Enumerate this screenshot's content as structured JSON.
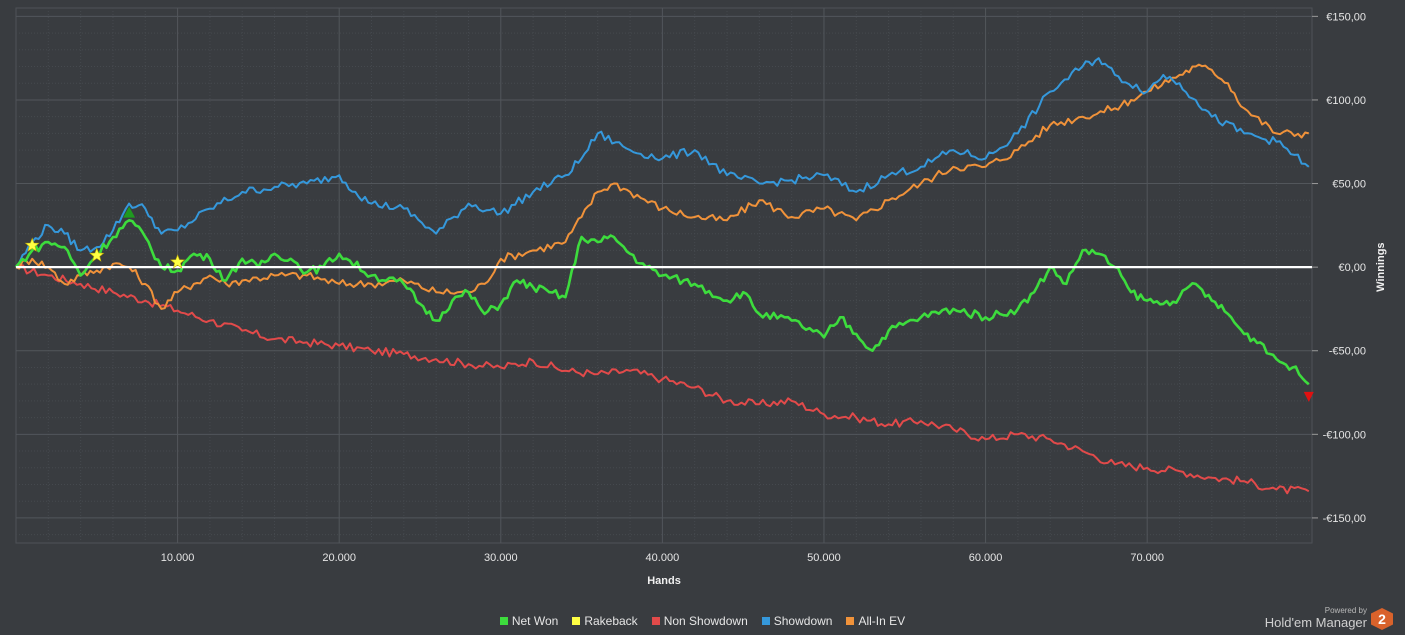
{
  "chart_data": {
    "type": "line",
    "xlabel": "Hands",
    "ylabel": "Winnings",
    "xlim": [
      0,
      80200
    ],
    "ylim": [
      -165,
      155
    ],
    "x_ticks": [
      10000,
      20000,
      30000,
      40000,
      50000,
      60000,
      70000
    ],
    "x_tick_labels": [
      "10.000",
      "20.000",
      "30.000",
      "40.000",
      "50.000",
      "60.000",
      "70.000"
    ],
    "y_ticks": [
      150,
      100,
      50,
      0,
      -50,
      -100,
      -150
    ],
    "y_tick_labels": [
      "€150,00",
      "€100,00",
      "€50,00",
      "€0,00",
      "-€50,00",
      "-€100,00",
      "-€150,00"
    ],
    "grid": true,
    "legend_position": "bottom-center",
    "colors": {
      "background": "#393c40",
      "grid": "#52565b",
      "zero_line": "#ffffff",
      "net_won": "#3ddc3d",
      "rakeback": "#ffff44",
      "non_showdown": "#e24a4a",
      "showdown": "#3598db",
      "all_in_ev": "#f0923a"
    },
    "series": [
      {
        "name": "Net Won",
        "color": "#3ddc3d",
        "x": [
          0,
          1000,
          2000,
          3000,
          4000,
          5000,
          6000,
          7000,
          8000,
          9000,
          10000,
          11000,
          12000,
          13000,
          14000,
          15000,
          16000,
          17000,
          18000,
          19000,
          20000,
          22000,
          24000,
          25000,
          26000,
          27000,
          28000,
          29000,
          30000,
          31000,
          32000,
          33000,
          34000,
          35000,
          36000,
          37000,
          38000,
          39000,
          40000,
          42000,
          44000,
          45000,
          46000,
          48000,
          50000,
          51000,
          52000,
          53000,
          54000,
          56000,
          58000,
          60000,
          62000,
          63000,
          64000,
          65000,
          66000,
          67000,
          68000,
          69000,
          70000,
          71000,
          72000,
          73000,
          74000,
          75000,
          76000,
          77000,
          78000,
          79000,
          80000
        ],
        "y": [
          0,
          10,
          15,
          12,
          -5,
          8,
          18,
          28,
          18,
          0,
          -2,
          8,
          5,
          -8,
          5,
          0,
          8,
          5,
          -3,
          0,
          8,
          -5,
          -10,
          -22,
          -32,
          -20,
          -15,
          -28,
          -22,
          -8,
          -12,
          -15,
          -18,
          18,
          15,
          18,
          8,
          0,
          -5,
          -10,
          -20,
          -15,
          -28,
          -32,
          -42,
          -30,
          -40,
          -50,
          -38,
          -30,
          -25,
          -30,
          -25,
          -15,
          0,
          -10,
          10,
          8,
          0,
          -15,
          -20,
          -22,
          -18,
          -10,
          -20,
          -28,
          -40,
          -45,
          -55,
          -60,
          -70
        ]
      },
      {
        "name": "Rakeback",
        "color": "#ffff44",
        "x": [],
        "y": []
      },
      {
        "name": "Non Showdown",
        "color": "#e24a4a",
        "x": [
          0,
          2000,
          4000,
          6000,
          8000,
          10000,
          12000,
          14000,
          16000,
          18000,
          20000,
          22000,
          24000,
          26000,
          28000,
          30000,
          32000,
          34000,
          36000,
          38000,
          40000,
          42000,
          44000,
          46000,
          48000,
          50000,
          52000,
          54000,
          56000,
          58000,
          60000,
          62000,
          64000,
          66000,
          68000,
          70000,
          72000,
          74000,
          76000,
          78000,
          80000
        ],
        "y": [
          0,
          -5,
          -10,
          -15,
          -20,
          -26,
          -32,
          -38,
          -43,
          -45,
          -47,
          -50,
          -52,
          -55,
          -58,
          -60,
          -56,
          -62,
          -64,
          -62,
          -67,
          -72,
          -80,
          -82,
          -80,
          -88,
          -90,
          -94,
          -92,
          -97,
          -103,
          -100,
          -103,
          -110,
          -118,
          -120,
          -122,
          -126,
          -128,
          -133,
          -134
        ]
      },
      {
        "name": "Showdown",
        "color": "#3598db",
        "x": [
          0,
          1000,
          2000,
          3000,
          4000,
          5000,
          6000,
          7000,
          8000,
          9000,
          10000,
          12000,
          14000,
          16000,
          18000,
          20000,
          21000,
          22000,
          24000,
          26000,
          28000,
          30000,
          32000,
          34000,
          35000,
          36000,
          38000,
          40000,
          42000,
          44000,
          46000,
          48000,
          50000,
          52000,
          54000,
          56000,
          58000,
          60000,
          62000,
          64000,
          66000,
          67000,
          68000,
          70000,
          71000,
          72000,
          73000,
          74000,
          76000,
          78000,
          80000
        ],
        "y": [
          0,
          15,
          25,
          20,
          10,
          12,
          22,
          38,
          35,
          20,
          22,
          35,
          45,
          48,
          50,
          55,
          45,
          38,
          35,
          20,
          38,
          32,
          45,
          55,
          65,
          80,
          70,
          65,
          70,
          55,
          50,
          52,
          55,
          45,
          55,
          60,
          70,
          65,
          80,
          105,
          120,
          125,
          115,
          105,
          115,
          110,
          100,
          90,
          80,
          75,
          60
        ]
      },
      {
        "name": "All-In EV",
        "color": "#f0923a",
        "x": [
          0,
          1000,
          2000,
          3000,
          4000,
          5000,
          6000,
          7000,
          8000,
          9000,
          10000,
          11000,
          12000,
          13000,
          14000,
          16000,
          18000,
          20000,
          22000,
          24000,
          26000,
          28000,
          29000,
          30000,
          32000,
          34000,
          35000,
          36000,
          37000,
          38000,
          40000,
          42000,
          44000,
          46000,
          48000,
          50000,
          52000,
          54000,
          56000,
          58000,
          60000,
          62000,
          64000,
          66000,
          68000,
          69000,
          70000,
          72000,
          73000,
          74000,
          75000,
          76000,
          78000,
          80000
        ],
        "y": [
          0,
          5,
          0,
          -10,
          -5,
          -2,
          2,
          0,
          -10,
          -25,
          -15,
          -10,
          -5,
          -10,
          -8,
          -5,
          -5,
          -10,
          -10,
          -8,
          -15,
          -15,
          -10,
          5,
          10,
          15,
          30,
          45,
          50,
          45,
          35,
          30,
          28,
          40,
          30,
          35,
          28,
          40,
          50,
          60,
          60,
          70,
          85,
          90,
          95,
          100,
          105,
          115,
          120,
          118,
          110,
          95,
          80,
          80
        ]
      }
    ],
    "markers": [
      {
        "type": "star",
        "x": 1000,
        "y": 13
      },
      {
        "type": "star",
        "x": 5000,
        "y": 7
      },
      {
        "type": "star",
        "x": 10000,
        "y": 3
      },
      {
        "type": "triangle-up",
        "x": 7000,
        "y": 32
      },
      {
        "type": "triangle-down",
        "x": 80000,
        "y": -77
      }
    ]
  },
  "legend": {
    "items": [
      {
        "label": "Net Won",
        "color": "#3ddc3d"
      },
      {
        "label": "Rakeback",
        "color": "#ffff44"
      },
      {
        "label": "Non Showdown",
        "color": "#e24a4a"
      },
      {
        "label": "Showdown",
        "color": "#3598db"
      },
      {
        "label": "All-In EV",
        "color": "#f0923a"
      }
    ]
  },
  "branding": {
    "powered_by": "Powered by",
    "name": "Hold'em Manager",
    "logo_text": "2"
  }
}
